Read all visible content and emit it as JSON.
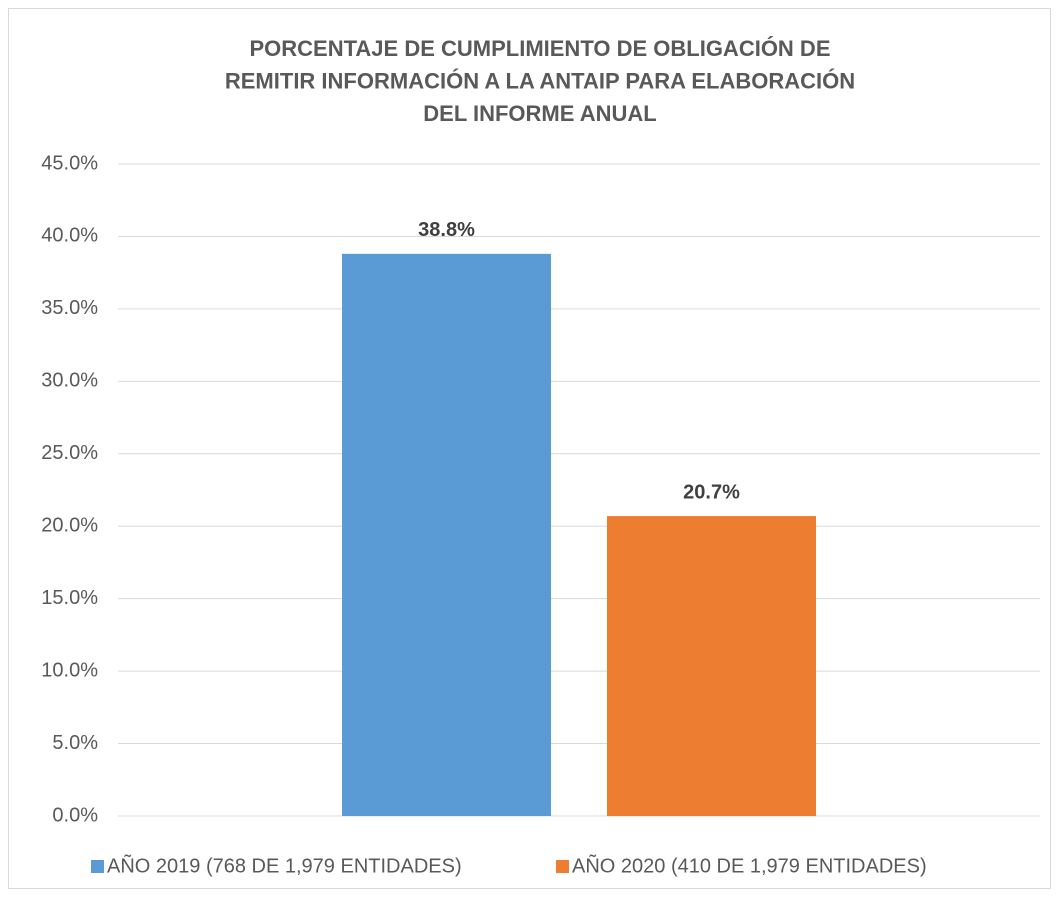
{
  "chart_data": {
    "type": "bar",
    "title": [
      "PORCENTAJE DE CUMPLIMIENTO DE OBLIGACIÓN DE",
      "REMITIR INFORMACIÓN A LA ANTAIP PARA ELABORACIÓN",
      "DEL INFORME ANUAL"
    ],
    "categories": [
      null
    ],
    "series": [
      {
        "name": "AÑO 2019 (768 DE 1,979 ENTIDADES)",
        "color": "#5b9bd5",
        "values": [
          38.8
        ],
        "value_labels": [
          "38.8%"
        ]
      },
      {
        "name": "AÑO 2020 (410 DE 1,979 ENTIDADES)",
        "color": "#ed7d31",
        "values": [
          20.7
        ],
        "value_labels": [
          "20.7%"
        ]
      }
    ],
    "ylim": [
      0,
      45
    ],
    "yticks": [
      {
        "value": 0,
        "label": "0.0%"
      },
      {
        "value": 5,
        "label": "5.0%"
      },
      {
        "value": 10,
        "label": "10.0%"
      },
      {
        "value": 15,
        "label": "15.0%"
      },
      {
        "value": 20,
        "label": "20.0%"
      },
      {
        "value": 25,
        "label": "25.0%"
      },
      {
        "value": 30,
        "label": "30.0%"
      },
      {
        "value": 35,
        "label": "35.0%"
      },
      {
        "value": 40,
        "label": "40.0%"
      },
      {
        "value": 45,
        "label": "45.0%"
      }
    ],
    "grid": true,
    "legend": "bottom"
  }
}
